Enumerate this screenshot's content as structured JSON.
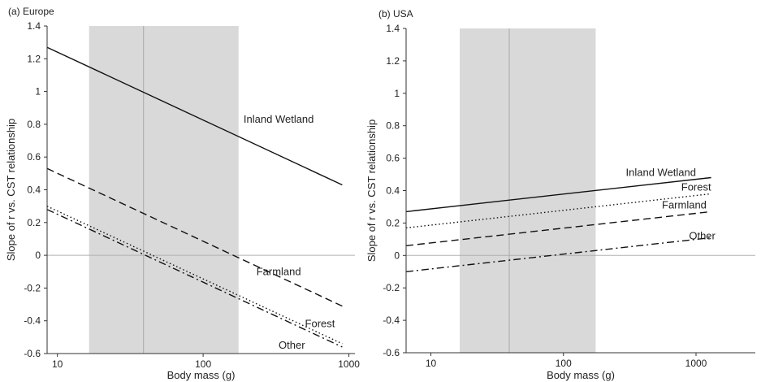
{
  "chart_data": [
    {
      "type": "line",
      "title": "(a) Europe",
      "xlabel": "Body mass (g)",
      "ylabel": "Slope of r vs. CST relationship",
      "xscale": "log",
      "xlim": [
        8.5,
        1100
      ],
      "ylim": [
        -0.6,
        1.4
      ],
      "xticks": [
        "10",
        "100",
        "1000"
      ],
      "xtick_values": [
        10,
        100,
        1000
      ],
      "yticks": [
        "-0.6",
        "-0.4",
        "-0.2",
        "0",
        "0.2",
        "0.4",
        "0.6",
        "0.8",
        "1",
        "1.2",
        "1.4"
      ],
      "ytick_values": [
        -0.6,
        -0.4,
        -0.2,
        0,
        0.2,
        0.4,
        0.6,
        0.8,
        1,
        1.2,
        1.4
      ],
      "shaded_band": [
        16.5,
        175
      ],
      "vline": 39,
      "hline": 0,
      "grid": false,
      "series": [
        {
          "name": "Inland Wetland",
          "style": "solid",
          "x": [
            8.5,
            900
          ],
          "y": [
            1.27,
            0.43
          ]
        },
        {
          "name": "Farmland",
          "style": "dashed",
          "x": [
            8.5,
            900
          ],
          "y": [
            0.53,
            -0.31
          ]
        },
        {
          "name": "Forest",
          "style": "dotted",
          "x": [
            8.5,
            900
          ],
          "y": [
            0.3,
            -0.54
          ]
        },
        {
          "name": "Other",
          "style": "dashdot",
          "x": [
            8.5,
            900
          ],
          "y": [
            0.28,
            -0.56
          ]
        }
      ],
      "labels": [
        {
          "text": "Inland Wetland",
          "x": 330,
          "y": 0.83
        },
        {
          "text": "Farmland",
          "x": 330,
          "y": -0.1
        },
        {
          "text": "Forest",
          "x": 500,
          "y": -0.42
        },
        {
          "text": "Other",
          "x": 500,
          "y": -0.55
        }
      ]
    },
    {
      "type": "line",
      "title": "(b) USA",
      "xlabel": "Body mass (g)",
      "ylabel": "Slope of r vs. CST relationship",
      "xscale": "log",
      "xlim": [
        6.5,
        2800
      ],
      "ylim": [
        -0.6,
        1.4
      ],
      "xticks": [
        "10",
        "100",
        "1000"
      ],
      "xtick_values": [
        10,
        100,
        1000
      ],
      "yticks": [
        "-0.6",
        "-0.4",
        "-0.2",
        "0",
        "0.2",
        "0.4",
        "0.6",
        "0.8",
        "1",
        "1.2",
        "1.4"
      ],
      "ytick_values": [
        -0.6,
        -0.4,
        -0.2,
        0,
        0.2,
        0.4,
        0.6,
        0.8,
        1,
        1.2,
        1.4
      ],
      "shaded_band": [
        16.5,
        175
      ],
      "vline": 39,
      "hline": 0,
      "grid": false,
      "series": [
        {
          "name": "Inland Wetland",
          "style": "solid",
          "x": [
            6.5,
            1300
          ],
          "y": [
            0.27,
            0.48
          ]
        },
        {
          "name": "Forest",
          "style": "dotted",
          "x": [
            6.5,
            1300
          ],
          "y": [
            0.17,
            0.38
          ]
        },
        {
          "name": "Farmland",
          "style": "dashed",
          "x": [
            6.5,
            1300
          ],
          "y": [
            0.06,
            0.27
          ]
        },
        {
          "name": "Other",
          "style": "dashdot",
          "x": [
            6.5,
            1300
          ],
          "y": [
            -0.1,
            0.11
          ]
        }
      ],
      "labels": [
        {
          "text": "Inland Wetland",
          "x": 1000,
          "y": 0.51
        },
        {
          "text": "Forest",
          "x": 1300,
          "y": 0.42
        },
        {
          "text": "Farmland",
          "x": 1200,
          "y": 0.31
        },
        {
          "text": "Other",
          "x": 1400,
          "y": 0.12
        }
      ]
    }
  ]
}
